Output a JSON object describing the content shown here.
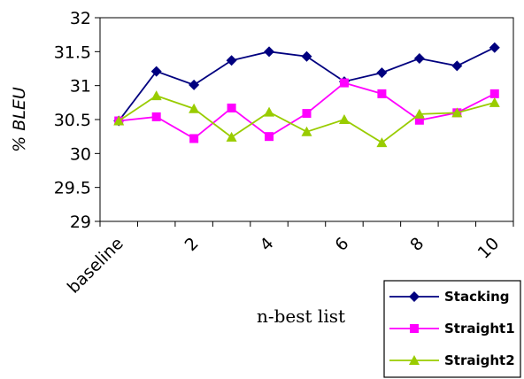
{
  "chart_data": {
    "type": "line",
    "title": "",
    "xlabel": "n-best list",
    "ylabel": "% BLEU",
    "ylim": [
      29,
      32
    ],
    "yticks": [
      "29",
      "29.5",
      "30",
      "30.5",
      "31",
      "31.5",
      "32"
    ],
    "categories": [
      "baseline",
      "1",
      "2",
      "3",
      "4",
      "5",
      "6",
      "7",
      "8",
      "9",
      "10"
    ],
    "xtick_labels": [
      "baseline",
      "2",
      "4",
      "6",
      "8",
      "10"
    ],
    "grid": false,
    "legend_position": "bottom-right",
    "series": [
      {
        "name": "Stacking",
        "color": "#00007f",
        "marker": "diamond",
        "values": [
          30.48,
          31.21,
          31.01,
          31.37,
          31.5,
          31.43,
          31.06,
          31.19,
          31.4,
          31.29,
          31.56
        ]
      },
      {
        "name": "Straight1",
        "color": "#ff00ff",
        "marker": "square",
        "values": [
          30.48,
          30.54,
          30.22,
          30.67,
          30.25,
          30.59,
          31.04,
          30.88,
          30.49,
          30.6,
          30.88
        ]
      },
      {
        "name": "Straight2",
        "color": "#99cc00",
        "marker": "triangle",
        "values": [
          30.48,
          30.85,
          30.66,
          30.24,
          30.61,
          30.32,
          30.5,
          30.16,
          30.58,
          30.6,
          30.75
        ]
      }
    ]
  }
}
